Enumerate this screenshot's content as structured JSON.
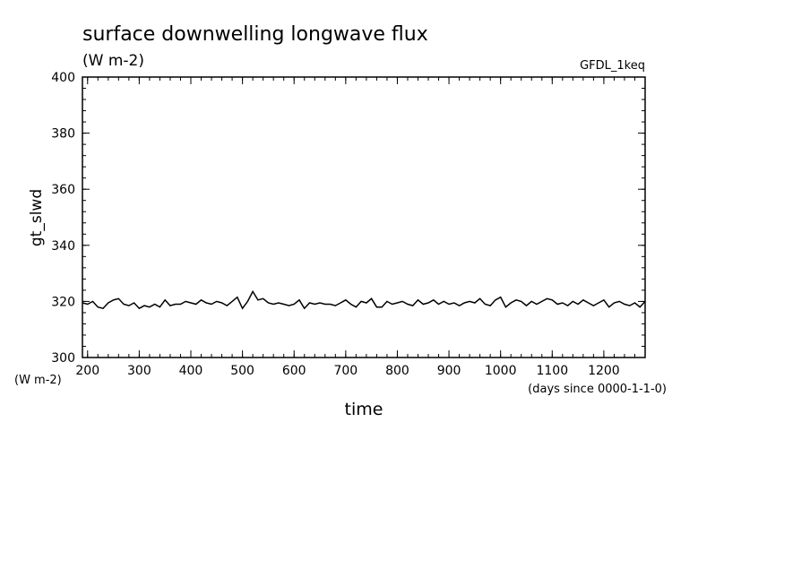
{
  "chart_data": {
    "type": "line",
    "title": "surface downwelling longwave flux",
    "units_label": "(W m-2)",
    "model_label": "GFDL_1keq",
    "xlabel": "time",
    "x_unit_label": "(days since 0000-1-1-0)",
    "ylabel": "gt_slwd",
    "y_unit_label": "(W m-2)",
    "xlim": [
      190,
      1280
    ],
    "ylim": [
      300,
      400
    ],
    "x_ticks": [
      200,
      300,
      400,
      500,
      600,
      700,
      800,
      900,
      1000,
      1100,
      1200
    ],
    "y_ticks": [
      300,
      320,
      340,
      360,
      380,
      400
    ],
    "grid": false,
    "legend": "none",
    "line_color": "#000000",
    "series": [
      {
        "x": [
          190,
          200,
          210,
          220,
          230,
          240,
          250,
          260,
          270,
          280,
          290,
          300,
          310,
          320,
          330,
          340,
          350,
          360,
          370,
          380,
          390,
          400,
          410,
          420,
          430,
          440,
          450,
          460,
          470,
          480,
          490,
          500,
          510,
          520,
          530,
          540,
          550,
          560,
          570,
          580,
          590,
          600,
          610,
          620,
          630,
          640,
          650,
          660,
          670,
          680,
          690,
          700,
          710,
          720,
          730,
          740,
          750,
          760,
          770,
          780,
          790,
          800,
          810,
          820,
          830,
          840,
          850,
          860,
          870,
          880,
          890,
          900,
          910,
          920,
          930,
          940,
          950,
          960,
          970,
          980,
          990,
          1000,
          1010,
          1020,
          1030,
          1040,
          1050,
          1060,
          1070,
          1080,
          1090,
          1100,
          1110,
          1120,
          1130,
          1140,
          1150,
          1160,
          1170,
          1180,
          1190,
          1200,
          1210,
          1220,
          1230,
          1240,
          1250,
          1260,
          1270,
          1280
        ],
        "values": [
          319.5,
          319.0,
          320.0,
          318.0,
          317.5,
          319.5,
          320.5,
          321.0,
          319.0,
          318.5,
          319.5,
          317.5,
          318.5,
          318.0,
          319.0,
          318.0,
          320.5,
          318.5,
          319.0,
          319.0,
          320.0,
          319.5,
          319.0,
          320.5,
          319.5,
          319.0,
          320.0,
          319.5,
          318.5,
          320.0,
          321.5,
          317.5,
          320.0,
          323.5,
          320.5,
          321.0,
          319.5,
          319.0,
          319.5,
          319.0,
          318.5,
          319.0,
          320.5,
          317.5,
          319.5,
          319.0,
          319.5,
          319.0,
          319.0,
          318.5,
          319.5,
          320.5,
          319.0,
          318.0,
          320.0,
          319.5,
          321.0,
          318.0,
          318.0,
          320.0,
          319.0,
          319.5,
          320.0,
          319.0,
          318.5,
          320.5,
          319.0,
          319.5,
          320.5,
          319.0,
          320.0,
          319.0,
          319.5,
          318.5,
          319.5,
          320.0,
          319.5,
          321.0,
          319.0,
          318.5,
          320.5,
          321.5,
          318.0,
          319.5,
          320.5,
          320.0,
          318.5,
          320.0,
          319.0,
          320.0,
          321.0,
          320.5,
          319.0,
          319.5,
          318.5,
          320.0,
          319.0,
          320.5,
          319.5,
          318.5,
          319.5,
          320.5,
          318.0,
          319.5,
          320.0,
          319.0,
          318.5,
          319.5,
          318.0,
          320.0
        ]
      }
    ]
  }
}
